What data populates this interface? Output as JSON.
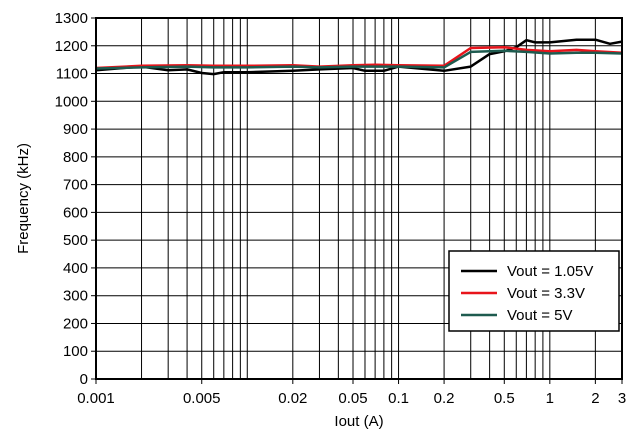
{
  "chart_data": {
    "type": "line",
    "xlabel": "Iout (A)",
    "ylabel": "Frequency (kHz)",
    "xscale": "log",
    "xlim": [
      0.001,
      3
    ],
    "ylim": [
      0,
      1300
    ],
    "x_ticks": [
      0.001,
      0.005,
      0.02,
      0.05,
      0.1,
      0.2,
      0.5,
      1,
      2,
      3
    ],
    "x_tick_labels": [
      "0.001",
      "0.005",
      "0.02",
      "0.05",
      "0.1",
      "0.2",
      "0.5",
      "1",
      "2",
      "3"
    ],
    "y_ticks": [
      0,
      100,
      200,
      300,
      400,
      500,
      600,
      700,
      800,
      900,
      1000,
      1100,
      1200,
      1300
    ],
    "y_tick_labels": [
      "0",
      "100",
      "200",
      "300",
      "400",
      "500",
      "600",
      "700",
      "800",
      "900",
      "1000",
      "1100",
      "1200",
      "1300"
    ],
    "grid": true,
    "legend_position": "bottom-right",
    "series": [
      {
        "name": "Vout = 1.05V",
        "color": "#000000",
        "x": [
          0.001,
          0.002,
          0.003,
          0.004,
          0.005,
          0.006,
          0.007,
          0.01,
          0.02,
          0.03,
          0.05,
          0.06,
          0.07,
          0.08,
          0.1,
          0.2,
          0.3,
          0.4,
          0.5,
          0.6,
          0.7,
          0.8,
          1,
          1.5,
          2,
          2.5,
          3
        ],
        "y": [
          1112,
          1125,
          1112,
          1115,
          1102,
          1098,
          1105,
          1105,
          1110,
          1115,
          1120,
          1110,
          1110,
          1110,
          1125,
          1110,
          1125,
          1170,
          1180,
          1195,
          1220,
          1212,
          1212,
          1222,
          1222,
          1207,
          1215
        ]
      },
      {
        "name": "Vout = 3.3V",
        "color": "#e8141b",
        "x": [
          0.001,
          0.002,
          0.004,
          0.006,
          0.01,
          0.02,
          0.03,
          0.05,
          0.07,
          0.1,
          0.2,
          0.3,
          0.5,
          0.7,
          1,
          1.5,
          2,
          3
        ],
        "y": [
          1120,
          1128,
          1130,
          1128,
          1128,
          1130,
          1125,
          1130,
          1132,
          1130,
          1128,
          1192,
          1195,
          1185,
          1180,
          1185,
          1180,
          1175
        ]
      },
      {
        "name": "Vout = 5V",
        "color": "#1e5b4f",
        "x": [
          0.001,
          0.002,
          0.004,
          0.006,
          0.01,
          0.02,
          0.03,
          0.05,
          0.07,
          0.1,
          0.2,
          0.3,
          0.5,
          0.7,
          1,
          1.5,
          2,
          3
        ],
        "y": [
          1118,
          1122,
          1125,
          1122,
          1122,
          1125,
          1122,
          1125,
          1125,
          1125,
          1122,
          1178,
          1182,
          1178,
          1172,
          1175,
          1175,
          1172
        ]
      }
    ]
  }
}
